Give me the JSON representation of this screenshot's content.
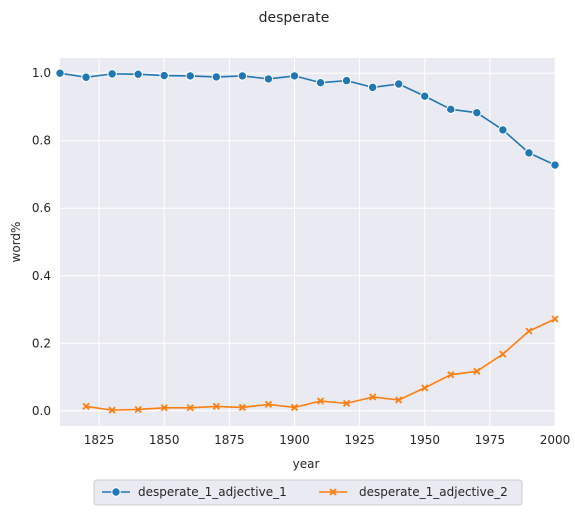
{
  "chart_data": {
    "type": "line",
    "title": "desperate",
    "xlabel": "year",
    "ylabel": "word%",
    "xlim": [
      1810,
      2000
    ],
    "ylim": [
      -0.045,
      1.045
    ],
    "x_ticks": [
      1825,
      1850,
      1875,
      1900,
      1925,
      1950,
      1975,
      2000
    ],
    "y_ticks": [
      0.0,
      0.2,
      0.4,
      0.6,
      0.8,
      1.0
    ],
    "x_tick_labels": [
      "1825",
      "1850",
      "1875",
      "1900",
      "1925",
      "1950",
      "1975",
      "2000"
    ],
    "y_tick_labels": [
      "0.0",
      "0.2",
      "0.4",
      "0.6",
      "0.8",
      "1.0"
    ],
    "grid": true,
    "background": "#eaeaf2",
    "legend_position": "bottom-center",
    "series": [
      {
        "name": "desperate_1_adjective_1",
        "color": "#1f77b4",
        "marker": "circle",
        "x": [
          1810,
          1820,
          1830,
          1840,
          1850,
          1860,
          1870,
          1880,
          1890,
          1900,
          1910,
          1920,
          1930,
          1940,
          1950,
          1960,
          1970,
          1980,
          1990,
          2000
        ],
        "y": [
          1.0,
          0.988,
          0.998,
          0.997,
          0.993,
          0.992,
          0.989,
          0.992,
          0.983,
          0.992,
          0.972,
          0.978,
          0.958,
          0.968,
          0.932,
          0.893,
          0.883,
          0.832,
          0.764,
          0.728
        ]
      },
      {
        "name": "desperate_1_adjective_2",
        "color": "#ff7f0e",
        "marker": "x",
        "x": [
          1820,
          1830,
          1840,
          1850,
          1860,
          1870,
          1880,
          1890,
          1900,
          1910,
          1920,
          1930,
          1940,
          1950,
          1960,
          1970,
          1980,
          1990,
          2000
        ],
        "y": [
          0.013,
          0.002,
          0.004,
          0.009,
          0.009,
          0.013,
          0.01,
          0.019,
          0.01,
          0.029,
          0.022,
          0.041,
          0.032,
          0.068,
          0.107,
          0.117,
          0.168,
          0.236,
          0.272
        ]
      }
    ]
  }
}
